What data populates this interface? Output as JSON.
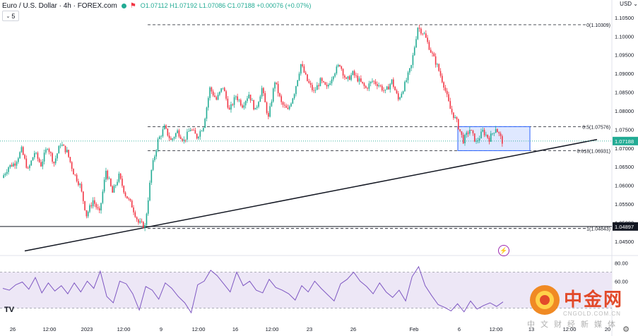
{
  "header": {
    "title": "Euro / U.S. Dollar · 4h · FOREX.com",
    "ohlc": "O1.07112  H1.07192  L1.07086  C1.07188  +0.00076 (+0.07%)",
    "indicator_value": "5",
    "currency": "USD"
  },
  "colors": {
    "up": "#22ab94",
    "down": "#f23645",
    "rsi": "#7e57c2",
    "rsi_band": "#ede7f6",
    "box": "#2962ff"
  },
  "watermark": {
    "text": "中金网",
    "sub": "CNGOLD.COM.CN",
    "cn": "中文财经新媒体"
  },
  "chart_data": {
    "type": "candlestick",
    "symbol": "EURUSD",
    "timeframe": "4h",
    "y_ticks": [
      "1.10500",
      "1.10000",
      "1.09500",
      "1.09000",
      "1.08500",
      "1.08000",
      "1.07500",
      "1.07000",
      "1.06500",
      "1.06000",
      "1.05500",
      "1.05000",
      "1.04500"
    ],
    "ylim": [
      1.0425,
      1.1065
    ],
    "x_ticks": [
      "26",
      "12:00",
      "2023",
      "12:00",
      "9",
      "12:00",
      "16",
      "12:00",
      "23",
      "26",
      "Feb",
      "6",
      "12:00",
      "13",
      "12:00",
      "20"
    ],
    "last_price": "1.07188",
    "fib_levels": [
      {
        "label": "0(1.10309)",
        "price": 1.10309
      },
      {
        "label": "0.5(1.07576)",
        "price": 1.07576
      },
      {
        "label": "0.618(1.06931)",
        "price": 1.06931
      },
      {
        "label": "1(1.04843)",
        "price": 1.04843
      }
    ],
    "horizontal_line": {
      "label": "1.04897",
      "price": 1.04897
    },
    "trendline": [
      {
        "x": "26 Dec",
        "y": 1.0424
      },
      {
        "x": "14 Feb",
        "y": 1.0723
      }
    ],
    "zone": {
      "from": "6 Feb",
      "to": "10 Feb",
      "top": 1.07576,
      "bottom": 1.06931
    },
    "path": [
      1.062,
      1.065,
      1.066,
      1.0695,
      1.064,
      1.0688,
      1.0655,
      1.0705,
      1.066,
      1.0712,
      1.069,
      1.0635,
      1.06,
      1.052,
      1.056,
      1.0525,
      1.064,
      1.058,
      1.0625,
      1.0575,
      1.0545,
      1.05,
      1.049,
      1.064,
      1.072,
      1.0755,
      1.072,
      1.0745,
      1.072,
      1.0752,
      1.073,
      1.076,
      1.086,
      1.083,
      1.0865,
      1.08,
      1.084,
      1.0815,
      1.0845,
      1.08,
      1.086,
      1.078,
      1.088,
      1.082,
      1.08,
      1.085,
      1.0925,
      1.088,
      1.085,
      1.088,
      1.086,
      1.09,
      1.0925,
      1.088,
      1.09,
      1.088,
      1.086,
      1.088,
      1.087,
      1.085,
      1.088,
      1.083,
      1.087,
      1.092,
      1.1025,
      1.1005,
      1.096,
      1.092,
      1.087,
      1.0805,
      1.077,
      1.072,
      1.075,
      1.0715,
      1.0745,
      1.0725,
      1.0755,
      1.0718
    ],
    "rsi": {
      "levels": [
        80.0,
        60.0
      ],
      "band": [
        70,
        30
      ],
      "ylim": [
        18,
        86
      ],
      "values": [
        52,
        50,
        56,
        59,
        51,
        64,
        47,
        58,
        49,
        55,
        46,
        58,
        48,
        60,
        52,
        71,
        43,
        36,
        60,
        57,
        46,
        28,
        54,
        50,
        40,
        58,
        52,
        43,
        36,
        25,
        56,
        60,
        72,
        66,
        57,
        48,
        70,
        55,
        60,
        50,
        47,
        62,
        53,
        50,
        46,
        39,
        55,
        48,
        60,
        52,
        45,
        38,
        57,
        62,
        70,
        60,
        54,
        46,
        58,
        48,
        42,
        50,
        38,
        65,
        76,
        55,
        44,
        34,
        31,
        27,
        35,
        26,
        38,
        29,
        33,
        36,
        32,
        37
      ]
    }
  }
}
